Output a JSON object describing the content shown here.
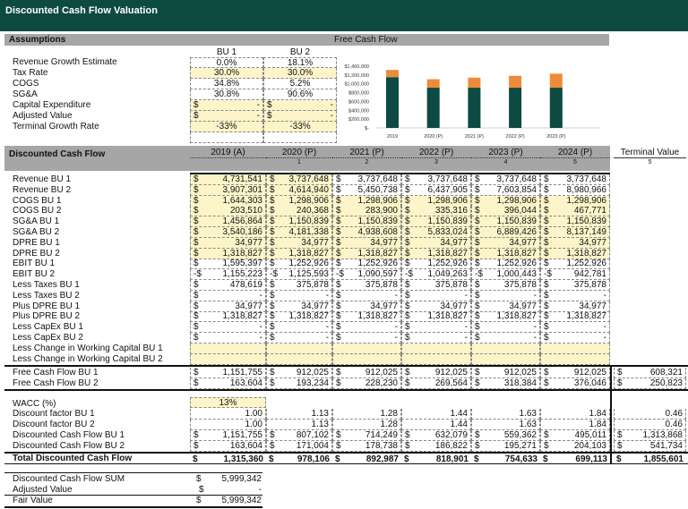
{
  "title": "Discounted Cash Flow Valuation",
  "colors": {
    "brand": "#0d4a42",
    "bu1_bar": "#0d4a42",
    "bu2_bar": "#ed8b3a",
    "input_fill": "#fdf5c9",
    "header_gray": "#a6a6a6"
  },
  "assumptions": {
    "header": "Assumptions",
    "col_headers": [
      "BU 1",
      "BU 2"
    ],
    "rows": [
      {
        "label": "Revenue Growth Estimate",
        "bu1": "0.0%",
        "bu2": "18.1%",
        "fill": false,
        "currency": false
      },
      {
        "label": "Tax Rate",
        "bu1": "30.0%",
        "bu2": "30.0%",
        "fill": true,
        "currency": false
      },
      {
        "label": "COGS",
        "bu1": "34.8%",
        "bu2": "5.2%",
        "fill": false,
        "currency": false
      },
      {
        "label": "SG&A",
        "bu1": "30.8%",
        "bu2": "90.6%",
        "fill": false,
        "currency": false
      },
      {
        "label": "Capital Expenditure",
        "bu1": "-",
        "bu2": "-",
        "fill": true,
        "currency": true
      },
      {
        "label": "Adjusted Value",
        "bu1": "-",
        "bu2": "-",
        "fill": true,
        "currency": true
      },
      {
        "label": "Terminal Growth Rate",
        "bu1": "-33%",
        "bu2": "-33%",
        "fill": true,
        "currency": false
      }
    ]
  },
  "chart_data": {
    "type": "bar",
    "stacked": true,
    "title": "Free Cash Flow",
    "categories": [
      "2019",
      "2020 (P)",
      "2021 (P)",
      "2022 (P)",
      "2023 (P)"
    ],
    "series": [
      {
        "values": [
          1151755,
          912025,
          912025,
          912025,
          912025
        ],
        "color": "#0d4a42"
      },
      {
        "values": [
          163604,
          193234,
          228230,
          269564,
          318384
        ],
        "color": "#ed8b3a"
      }
    ],
    "ylim": [
      0,
      1400000
    ],
    "yticks": [
      "$1,400,000",
      "$1,200,000",
      "$1,000,000",
      "$800,000",
      "$600,000",
      "$400,000",
      "$200,000",
      "$-"
    ],
    "grid": false,
    "legend": "none"
  },
  "dcf": {
    "header": "Discounted Cash Flow",
    "years": [
      "2019 (A)",
      "2020 (P)",
      "2021 (P)",
      "2022 (P)",
      "2023 (P)",
      "2024 (P)",
      "Terminal Value"
    ],
    "periods": [
      "",
      "1",
      "2",
      "3",
      "4",
      "5",
      "5"
    ],
    "rows": [
      {
        "label": "Revenue BU 1",
        "cells": [
          [
            "$",
            "4,731,541"
          ],
          [
            "$",
            "3,737,648"
          ],
          [
            "$",
            "3,737,648"
          ],
          [
            "$",
            "3,737,648"
          ],
          [
            "$",
            "3,737,648"
          ],
          [
            "$",
            "3,737,648"
          ]
        ],
        "fill": "partial"
      },
      {
        "label": "Revenue BU 2",
        "cells": [
          [
            "$",
            "3,907,301"
          ],
          [
            "$",
            "4,614,940"
          ],
          [
            "$",
            "5,450,738"
          ],
          [
            "$",
            "6,437,905"
          ],
          [
            "$",
            "7,603,854"
          ],
          [
            "$",
            "8,980,966"
          ]
        ],
        "fill": "partial"
      },
      {
        "label": "COGS BU 1",
        "cells": [
          [
            "$",
            "1,644,303"
          ],
          [
            "$",
            "1,298,906"
          ],
          [
            "$",
            "1,298,906"
          ],
          [
            "$",
            "1,298,906"
          ],
          [
            "$",
            "1,298,906"
          ],
          [
            "$",
            "1,298,906"
          ]
        ],
        "fill": "all"
      },
      {
        "label": "COGS BU 2",
        "cells": [
          [
            "$",
            "203,510"
          ],
          [
            "$",
            "240,368"
          ],
          [
            "$",
            "283,900"
          ],
          [
            "$",
            "335,316"
          ],
          [
            "$",
            "396,044"
          ],
          [
            "$",
            "467,771"
          ]
        ],
        "fill": "all"
      },
      {
        "label": "SG&A BU 1",
        "cells": [
          [
            "$",
            "1,456,864"
          ],
          [
            "$",
            "1,150,839"
          ],
          [
            "$",
            "1,150,839"
          ],
          [
            "$",
            "1,150,839"
          ],
          [
            "$",
            "1,150,839"
          ],
          [
            "$",
            "1,150,839"
          ]
        ],
        "fill": "all"
      },
      {
        "label": "SG&A BU 2",
        "cells": [
          [
            "$",
            "3,540,186"
          ],
          [
            "$",
            "4,181,338"
          ],
          [
            "$",
            "4,938,608"
          ],
          [
            "$",
            "5,833,024"
          ],
          [
            "$",
            "6,889,426"
          ],
          [
            "$",
            "8,137,149"
          ]
        ],
        "fill": "all"
      },
      {
        "label": "DPRE BU 1",
        "cells": [
          [
            "$",
            "34,977"
          ],
          [
            "$",
            "34,977"
          ],
          [
            "$",
            "34,977"
          ],
          [
            "$",
            "34,977"
          ],
          [
            "$",
            "34,977"
          ],
          [
            "$",
            "34,977"
          ]
        ],
        "fill": "all"
      },
      {
        "label": "DPRE BU 2",
        "cells": [
          [
            "$",
            "1,318,827"
          ],
          [
            "$",
            "1,318,827"
          ],
          [
            "$",
            "1,318,827"
          ],
          [
            "$",
            "1,318,827"
          ],
          [
            "$",
            "1,318,827"
          ],
          [
            "$",
            "1,318,827"
          ]
        ],
        "fill": "all"
      },
      {
        "label": "EBIT BU 1",
        "cells": [
          [
            "$",
            "1,595,397"
          ],
          [
            "$",
            "1,252,926"
          ],
          [
            "$",
            "1,252,926"
          ],
          [
            "$",
            "1,252,926"
          ],
          [
            "$",
            "1,252,926"
          ],
          [
            "$",
            "1,252,926"
          ]
        ],
        "fill": "none"
      },
      {
        "label": "EBIT BU 2",
        "cells": [
          [
            "-$",
            "1,155,223"
          ],
          [
            "-$",
            "1,125,593"
          ],
          [
            "-$",
            "1,090,597"
          ],
          [
            "-$",
            "1,049,263"
          ],
          [
            "-$",
            "1,000,443"
          ],
          [
            "-$",
            "942,781"
          ]
        ],
        "fill": "none"
      },
      {
        "label": "Less Taxes BU 1",
        "cells": [
          [
            "$",
            "478,619"
          ],
          [
            "$",
            "375,878"
          ],
          [
            "$",
            "375,878"
          ],
          [
            "$",
            "375,878"
          ],
          [
            "$",
            "375,878"
          ],
          [
            "$",
            "375,878"
          ]
        ],
        "fill": "none"
      },
      {
        "label": "Less Taxes BU 2",
        "cells": [
          [
            "$",
            "-"
          ],
          [
            "$",
            "-"
          ],
          [
            "$",
            "-"
          ],
          [
            "$",
            "-"
          ],
          [
            "$",
            "-"
          ],
          [
            "$",
            "-"
          ]
        ],
        "fill": "none"
      },
      {
        "label": "Plus DPRE BU 1",
        "cells": [
          [
            "$",
            "34,977"
          ],
          [
            "$",
            "34,977"
          ],
          [
            "$",
            "34,977"
          ],
          [
            "$",
            "34,977"
          ],
          [
            "$",
            "34,977"
          ],
          [
            "$",
            "34,977"
          ]
        ],
        "fill": "none"
      },
      {
        "label": "Plus DPRE BU 2",
        "cells": [
          [
            "$",
            "1,318,827"
          ],
          [
            "$",
            "1,318,827"
          ],
          [
            "$",
            "1,318,827"
          ],
          [
            "$",
            "1,318,827"
          ],
          [
            "$",
            "1,318,827"
          ],
          [
            "$",
            "1,318,827"
          ]
        ],
        "fill": "none"
      },
      {
        "label": "Less CapEx BU 1",
        "cells": [
          [
            "$",
            "-"
          ],
          [
            "$",
            "-"
          ],
          [
            "$",
            "-"
          ],
          [
            "$",
            "-"
          ],
          [
            "$",
            "-"
          ],
          [
            "$",
            "-"
          ]
        ],
        "fill": "none"
      },
      {
        "label": "Less CapEx BU 2",
        "cells": [
          [
            "$",
            "-"
          ],
          [
            "$",
            "-"
          ],
          [
            "$",
            "-"
          ],
          [
            "$",
            "-"
          ],
          [
            "$",
            "-"
          ],
          [
            "$",
            "-"
          ]
        ],
        "fill": "none"
      },
      {
        "label": "Less Change in Working Capital BU 1",
        "cells": [
          [
            "",
            ""
          ],
          [
            "",
            ""
          ],
          [
            "",
            ""
          ],
          [
            "",
            ""
          ],
          [
            "",
            ""
          ],
          [
            "",
            ""
          ]
        ],
        "fill": "all"
      },
      {
        "label": "Less Change in Working Capital BU 2",
        "cells": [
          [
            "",
            ""
          ],
          [
            "",
            ""
          ],
          [
            "",
            ""
          ],
          [
            "",
            ""
          ],
          [
            "",
            ""
          ],
          [
            "",
            ""
          ]
        ],
        "fill": "all"
      }
    ],
    "fcf_rows": [
      {
        "label": "Free Cash Flow BU 1",
        "cells": [
          [
            "$",
            "1,151,755"
          ],
          [
            "$",
            "912,025"
          ],
          [
            "$",
            "912,025"
          ],
          [
            "$",
            "912,025"
          ],
          [
            "$",
            "912,025"
          ],
          [
            "$",
            "912,025"
          ],
          [
            "$",
            "608,321"
          ]
        ]
      },
      {
        "label": "Free Cash Flow BU 2",
        "cells": [
          [
            "$",
            "163,604"
          ],
          [
            "$",
            "193,234"
          ],
          [
            "$",
            "228,230"
          ],
          [
            "$",
            "269,564"
          ],
          [
            "$",
            "318,384"
          ],
          [
            "$",
            "376,046"
          ],
          [
            "$",
            "250,823"
          ]
        ]
      }
    ],
    "wacc": {
      "label": "WACC (%)",
      "value": "13%"
    },
    "disc_rows": [
      {
        "label": "Discount factor BU 1",
        "cells": [
          [
            "",
            "1.00"
          ],
          [
            "",
            "1.13"
          ],
          [
            "",
            "1.28"
          ],
          [
            "",
            "1.44"
          ],
          [
            "",
            "1.63"
          ],
          [
            "",
            "1.84"
          ],
          [
            "",
            "0.46"
          ]
        ]
      },
      {
        "label": "Discount factor BU 2",
        "cells": [
          [
            "",
            "1.00"
          ],
          [
            "",
            "1.13"
          ],
          [
            "",
            "1.28"
          ],
          [
            "",
            "1.44"
          ],
          [
            "",
            "1.63"
          ],
          [
            "",
            "1.84"
          ],
          [
            "",
            "0.46"
          ]
        ]
      },
      {
        "label": "Discounted Cash Flow BU 1",
        "cells": [
          [
            "$",
            "1,151,755"
          ],
          [
            "$",
            "807,102"
          ],
          [
            "$",
            "714,249"
          ],
          [
            "$",
            "632,079"
          ],
          [
            "$",
            "559,362"
          ],
          [
            "$",
            "495,011"
          ],
          [
            "$",
            "1,313,868"
          ]
        ]
      },
      {
        "label": "Discounted Cash Flow BU 2",
        "cells": [
          [
            "$",
            "163,604"
          ],
          [
            "$",
            "171,004"
          ],
          [
            "$",
            "178,738"
          ],
          [
            "$",
            "186,822"
          ],
          [
            "$",
            "195,271"
          ],
          [
            "$",
            "204,103"
          ],
          [
            "$",
            "541,734"
          ]
        ]
      }
    ],
    "total": {
      "label": "Total Discounted Cash Flow",
      "cells": [
        [
          "$",
          "1,315,360"
        ],
        [
          "$",
          "978,106"
        ],
        [
          "$",
          "892,987"
        ],
        [
          "$",
          "818,901"
        ],
        [
          "$",
          "754,633"
        ],
        [
          "$",
          "699,113"
        ],
        [
          "$",
          "1,855,601"
        ]
      ]
    }
  },
  "summary": [
    {
      "label": "Discounted Cash Flow SUM",
      "cur": "$",
      "value": "5,999,342"
    },
    {
      "label": "Adjusted Value",
      "cur": "$",
      "value": "-"
    },
    {
      "label": "Fair Value",
      "cur": "$",
      "value": "5,999,342"
    }
  ]
}
